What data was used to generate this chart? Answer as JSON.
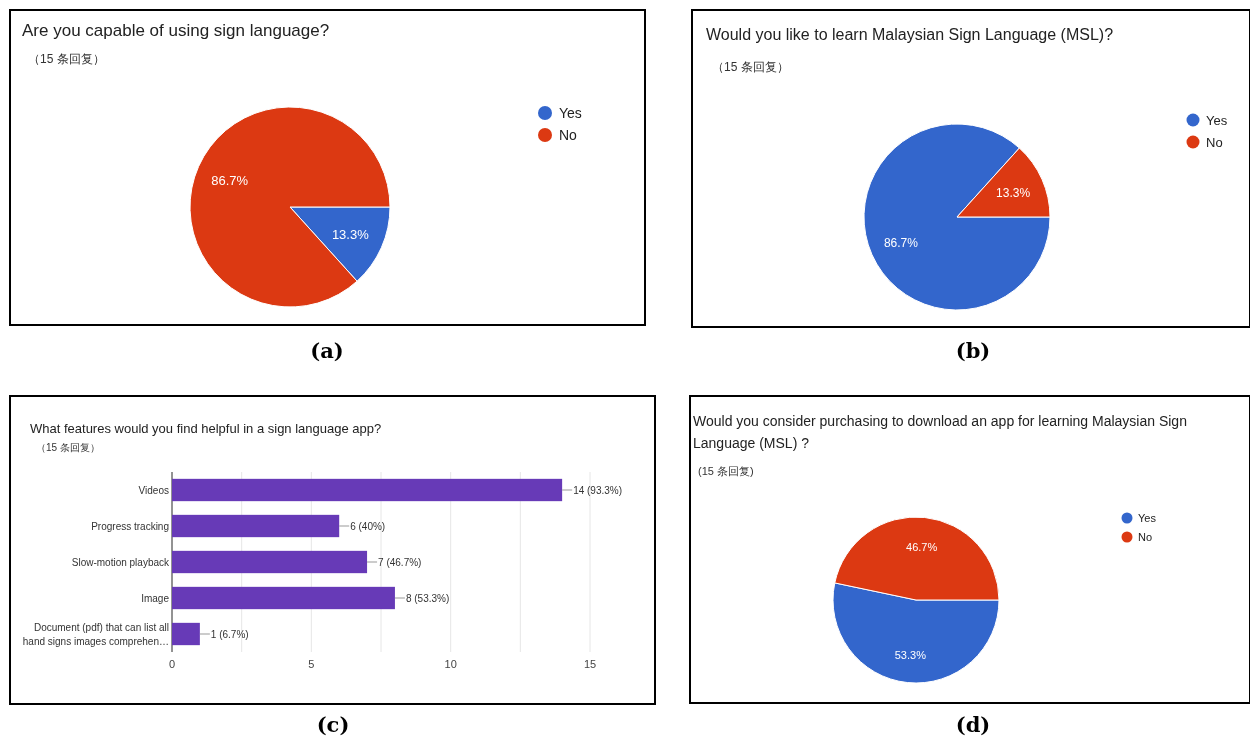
{
  "chart_data": [
    {
      "type": "pie",
      "title": "Are you capable of using sign language?",
      "subtitle": "（15 条回复）",
      "categories": [
        "Yes",
        "No"
      ],
      "values": [
        13.3,
        86.7
      ],
      "value_labels": [
        "13.3%",
        "86.7%"
      ],
      "colors": [
        "#3366cc",
        "#dc3912"
      ],
      "legend": "right",
      "annotations": [
        "(a)"
      ]
    },
    {
      "type": "pie",
      "title": "Would you like to learn Malaysian Sign Language (MSL)?",
      "subtitle": "（15 条回复）",
      "categories": [
        "Yes",
        "No"
      ],
      "values": [
        86.7,
        13.3
      ],
      "value_labels": [
        "86.7%",
        "13.3%"
      ],
      "colors": [
        "#3366cc",
        "#dc3912"
      ],
      "legend": "right",
      "annotations": [
        "(b)"
      ]
    },
    {
      "type": "bar",
      "orientation": "horizontal",
      "title": "What features would you find helpful in a sign language app?",
      "subtitle": "（15 条回复）",
      "categories": [
        "Videos",
        "Progress tracking",
        "Slow-motion playback",
        "Image",
        "Document (pdf) that can list all hand signs images comprehen…"
      ],
      "values": [
        14,
        6,
        7,
        8,
        1
      ],
      "value_labels": [
        "14 (93.3%)",
        "6 (40%)",
        "7 (46.7%)",
        "8 (53.3%)",
        "1 (6.7%)"
      ],
      "color": "#673ab7",
      "xlim": [
        0,
        15
      ],
      "xticks": [
        0,
        {
          "value": 2.5,
          "label": null
        },
        5,
        {
          "value": 7.5,
          "label": null
        },
        10,
        {
          "value": 12.5,
          "label": null
        },
        15
      ],
      "grid": "x",
      "annotations": [
        "(c)"
      ]
    },
    {
      "type": "pie",
      "title": "Would you consider purchasing to download an app for learning Malaysian Sign Language (MSL)  ?",
      "subtitle": "(15 条回复)",
      "categories": [
        "Yes",
        "No"
      ],
      "values": [
        53.3,
        46.7
      ],
      "value_labels": [
        "53.3%",
        "46.7%"
      ],
      "colors": [
        "#3366cc",
        "#dc3912"
      ],
      "legend": "right",
      "annotations": [
        "(d)"
      ]
    }
  ]
}
